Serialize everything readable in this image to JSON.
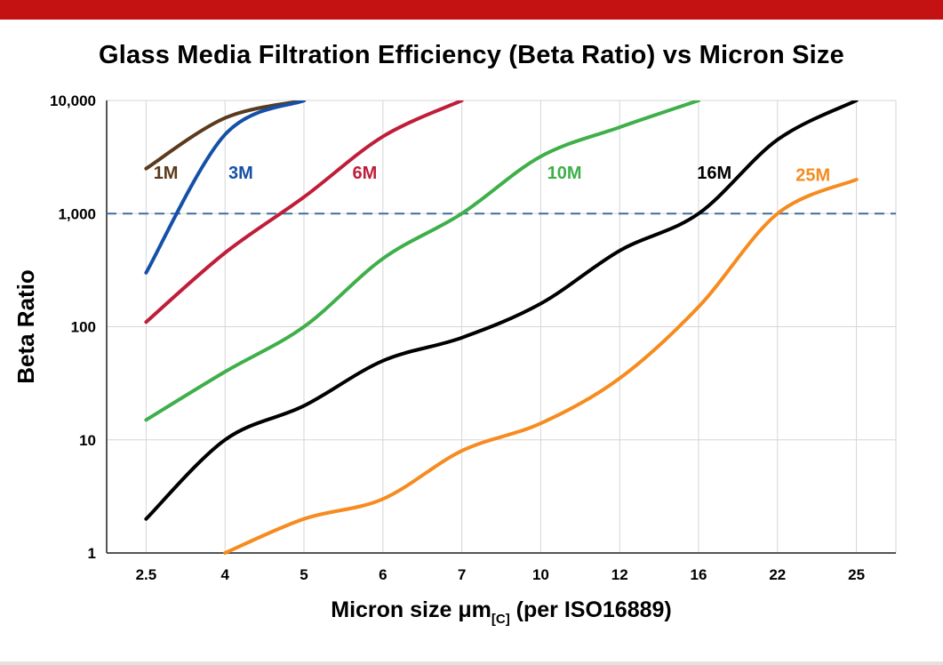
{
  "page": {
    "top_bar_color": "#c41212",
    "title": "Glass Media Filtration Efficiency (Beta Ratio) vs Micron Size"
  },
  "chart_data": {
    "type": "line",
    "title": "Glass Media Filtration Efficiency (Beta Ratio) vs Micron Size",
    "ylabel": "Beta Ratio",
    "xlabel_main": "Micron size μm",
    "xlabel_sub": "[C]",
    "xlabel_tail": " (per ISO16889)",
    "x_scale": "categorical",
    "y_scale": "log",
    "ylim": [
      1,
      10000
    ],
    "grid": true,
    "grid_color": "#d6d6d6",
    "spine_color": "#555555",
    "y_ticks": [
      {
        "value": 10000,
        "label": "10,000"
      },
      {
        "value": 1000,
        "label": "1,000"
      },
      {
        "value": 100,
        "label": "100"
      },
      {
        "value": 10,
        "label": "10"
      },
      {
        "value": 1,
        "label": "1"
      }
    ],
    "categories": [
      "2.5",
      "4",
      "5",
      "6",
      "7",
      "10",
      "12",
      "16",
      "22",
      "25"
    ],
    "reference_line": {
      "y": 1000,
      "style": "dashed",
      "color": "#3f6fa0"
    },
    "series": [
      {
        "name": "1M",
        "color": "#5b3a1d",
        "label_pos": {
          "xi": 0.25,
          "y": 2300
        },
        "values": [
          2500,
          7000,
          10000,
          null,
          null,
          null,
          null,
          null,
          null,
          null
        ]
      },
      {
        "name": "3M",
        "color": "#1550a8",
        "label_pos": {
          "xi": 1.2,
          "y": 2300
        },
        "values": [
          300,
          5000,
          10000,
          null,
          null,
          null,
          null,
          null,
          null,
          null
        ]
      },
      {
        "name": "6M",
        "color": "#bf1e3a",
        "label_pos": {
          "xi": 2.77,
          "y": 2300
        },
        "values": [
          110,
          450,
          1400,
          4800,
          10000,
          null,
          null,
          null,
          null,
          null
        ]
      },
      {
        "name": "10M",
        "color": "#3faf4a",
        "label_pos": {
          "xi": 5.3,
          "y": 2300
        },
        "values": [
          15,
          40,
          100,
          400,
          1000,
          3200,
          5800,
          10000,
          null,
          null
        ]
      },
      {
        "name": "16M",
        "color": "#000000",
        "label_pos": {
          "xi": 7.2,
          "y": 2300
        },
        "values": [
          2,
          10,
          20,
          50,
          80,
          160,
          470,
          1000,
          4500,
          10000
        ]
      },
      {
        "name": "25M",
        "color": "#f68b1f",
        "label_pos": {
          "xi": 8.45,
          "y": 2200
        },
        "values": [
          null,
          1,
          2,
          3,
          8,
          14,
          35,
          150,
          1000,
          2000
        ]
      }
    ]
  }
}
